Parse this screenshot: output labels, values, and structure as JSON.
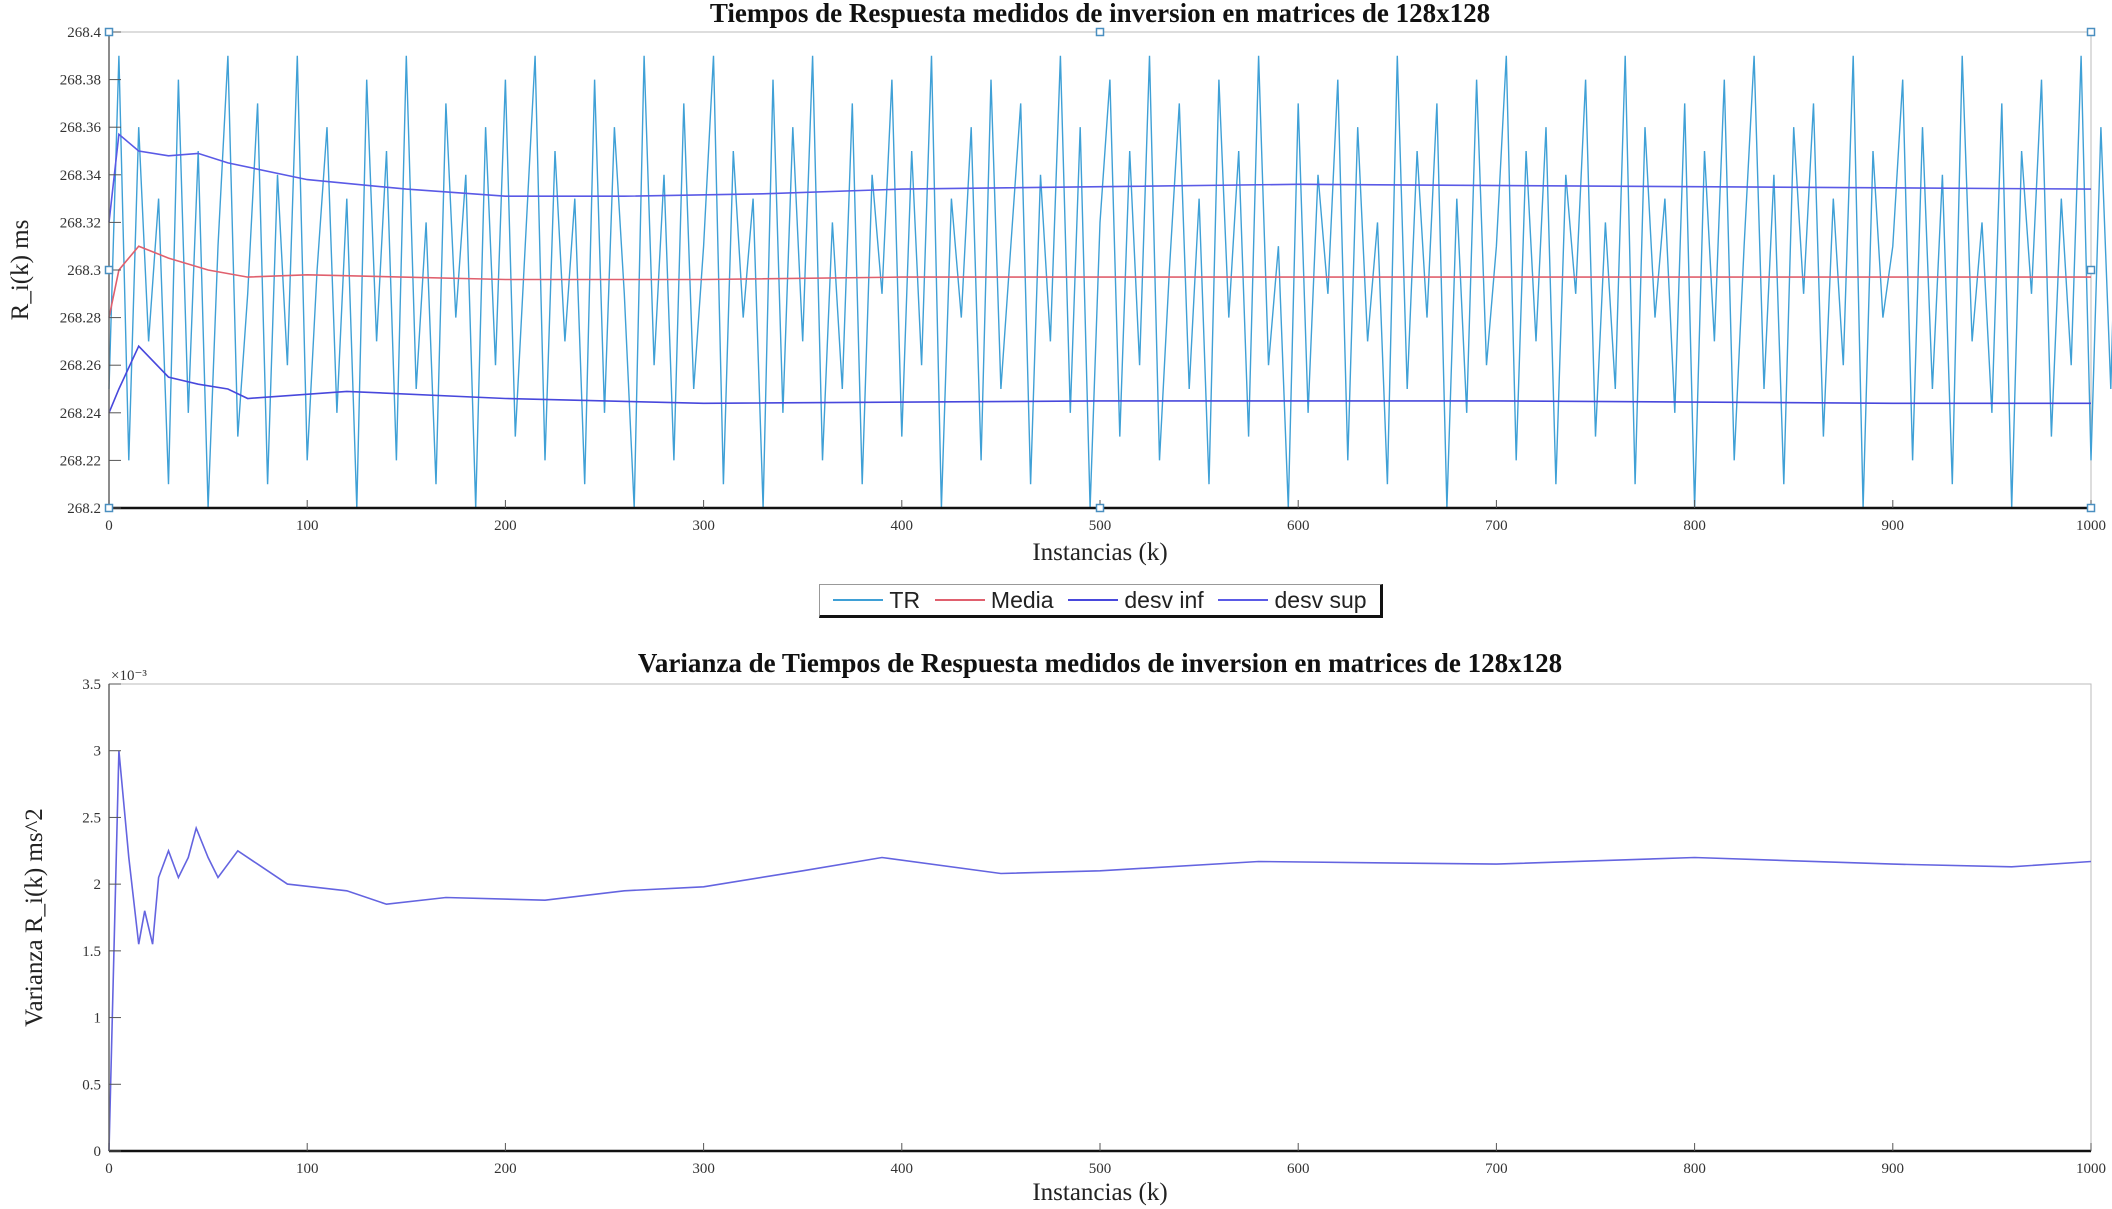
{
  "chart_data": [
    {
      "type": "line",
      "title": "Tiempos de Respuesta medidos de inversion en matrices de 128x128",
      "xlabel": "Instancias (k)",
      "ylabel": "R_i(k) ms",
      "xlim": [
        0,
        1000
      ],
      "ylim": [
        268.2,
        268.4
      ],
      "xticks": [
        "0",
        "100",
        "200",
        "300",
        "400",
        "500",
        "600",
        "700",
        "800",
        "900",
        "1000"
      ],
      "yticks": [
        "268.2",
        "268.22",
        "268.24",
        "268.26",
        "268.28",
        "268.3",
        "268.32",
        "268.34",
        "268.36",
        "268.38",
        "268.4"
      ],
      "grid": false,
      "legend": {
        "placement": "below",
        "entries": [
          "TR",
          "Media",
          "desv inf",
          "desv sup"
        ]
      },
      "series": [
        {
          "name": "TR",
          "color": "#3fa0d6",
          "x_step": 5,
          "values": [
            268.25,
            268.39,
            268.22,
            268.36,
            268.27,
            268.33,
            268.21,
            268.38,
            268.24,
            268.35,
            268.2,
            268.31,
            268.39,
            268.23,
            268.29,
            268.37,
            268.21,
            268.34,
            268.26,
            268.39,
            268.22,
            268.3,
            268.36,
            268.24,
            268.33,
            268.2,
            268.38,
            268.27,
            268.35,
            268.22,
            268.39,
            268.25,
            268.32,
            268.21,
            268.37,
            268.28,
            268.34,
            268.2,
            268.36,
            268.26,
            268.38,
            268.23,
            268.31,
            268.39,
            268.22,
            268.35,
            268.27,
            268.33,
            268.21,
            268.38,
            268.24,
            268.36,
            268.29,
            268.2,
            268.39,
            268.26,
            268.34,
            268.22,
            268.37,
            268.25,
            268.31,
            268.39,
            268.21,
            268.35,
            268.28,
            268.33,
            268.2,
            268.38,
            268.24,
            268.36,
            268.27,
            268.39,
            268.22,
            268.32,
            268.25,
            268.37,
            268.21,
            268.34,
            268.29,
            268.38,
            268.23,
            268.35,
            268.26,
            268.39,
            268.2,
            268.33,
            268.28,
            268.36,
            268.22,
            268.38,
            268.25,
            268.31,
            268.37,
            268.21,
            268.34,
            268.27,
            268.39,
            268.24,
            268.36,
            268.2,
            268.32,
            268.38,
            268.23,
            268.35,
            268.26,
            268.39,
            268.22,
            268.3,
            268.37,
            268.25,
            268.33,
            268.21,
            268.38,
            268.28,
            268.35,
            268.23,
            268.39,
            268.26,
            268.31,
            268.2,
            268.37,
            268.24,
            268.34,
            268.29,
            268.38,
            268.22,
            268.36,
            268.27,
            268.32,
            268.21,
            268.39,
            268.25,
            268.35,
            268.28,
            268.37,
            268.2,
            268.33,
            268.24,
            268.38,
            268.26,
            268.31,
            268.39,
            268.22,
            268.35,
            268.27,
            268.36,
            268.21,
            268.34,
            268.29,
            268.38,
            268.23,
            268.32,
            268.25,
            268.39,
            268.21,
            268.36,
            268.28,
            268.33,
            268.24,
            268.37,
            268.2,
            268.35,
            268.27,
            268.38,
            268.22,
            268.31,
            268.39,
            268.25,
            268.34,
            268.21,
            268.36,
            268.29,
            268.37,
            268.23,
            268.33,
            268.26,
            268.39,
            268.2,
            268.35,
            268.28,
            268.31,
            268.38,
            268.22,
            268.36,
            268.25,
            268.34,
            268.21,
            268.39,
            268.27,
            268.32,
            268.24,
            268.37,
            268.2,
            268.35,
            268.29,
            268.38,
            268.23,
            268.33,
            268.26,
            268.39,
            268.22,
            268.36,
            268.25,
            268.4
          ]
        },
        {
          "name": "Media",
          "color": "#e0606e",
          "x": [
            0,
            5,
            15,
            30,
            50,
            70,
            100,
            200,
            300,
            400,
            600,
            800,
            1000
          ],
          "values": [
            268.28,
            268.3,
            268.31,
            268.305,
            268.3,
            268.297,
            268.298,
            268.296,
            268.296,
            268.297,
            268.297,
            268.297,
            268.297
          ]
        },
        {
          "name": "desv inf",
          "color": "#4848dc",
          "x": [
            0,
            5,
            15,
            30,
            45,
            60,
            70,
            120,
            200,
            300,
            500,
            700,
            900,
            1000
          ],
          "values": [
            268.24,
            268.25,
            268.268,
            268.255,
            268.252,
            268.25,
            268.246,
            268.249,
            268.246,
            268.244,
            268.245,
            268.245,
            268.244,
            268.244
          ]
        },
        {
          "name": "desv sup",
          "color": "#5a5ae6",
          "x": [
            0,
            5,
            15,
            30,
            45,
            60,
            100,
            150,
            200,
            260,
            330,
            400,
            600,
            800,
            1000
          ],
          "values": [
            268.32,
            268.357,
            268.35,
            268.348,
            268.349,
            268.345,
            268.338,
            268.334,
            268.331,
            268.331,
            268.332,
            268.334,
            268.336,
            268.335,
            268.334
          ]
        }
      ]
    },
    {
      "type": "line",
      "title": "Varianza de Tiempos de Respuesta medidos de inversion en matrices de 128x128",
      "xlabel": "Instancias (k)",
      "ylabel": "Varianza R_i(k) ms^2",
      "exponent_label": "×10⁻³",
      "xlim": [
        0,
        1000
      ],
      "ylim": [
        0,
        3.5
      ],
      "y_scale": 0.001,
      "xticks": [
        "0",
        "100",
        "200",
        "300",
        "400",
        "500",
        "600",
        "700",
        "800",
        "900",
        "1000"
      ],
      "yticks": [
        "0",
        "0.5",
        "1",
        "1.5",
        "2",
        "2.5",
        "3",
        "3.5"
      ],
      "grid": false,
      "series": [
        {
          "name": "Varianza",
          "color": "#6464e0",
          "x": [
            0,
            5,
            10,
            15,
            18,
            22,
            25,
            30,
            35,
            40,
            44,
            50,
            55,
            65,
            75,
            90,
            120,
            140,
            170,
            220,
            260,
            300,
            350,
            390,
            450,
            500,
            580,
            700,
            800,
            900,
            960,
            1000
          ],
          "values": [
            0,
            3.0,
            2.2,
            1.55,
            1.8,
            1.55,
            2.05,
            2.25,
            2.05,
            2.2,
            2.42,
            2.2,
            2.05,
            2.25,
            2.15,
            2.0,
            1.95,
            1.85,
            1.9,
            1.88,
            1.95,
            1.98,
            2.1,
            2.2,
            2.08,
            2.1,
            2.17,
            2.15,
            2.2,
            2.15,
            2.13,
            2.17
          ]
        }
      ]
    }
  ]
}
